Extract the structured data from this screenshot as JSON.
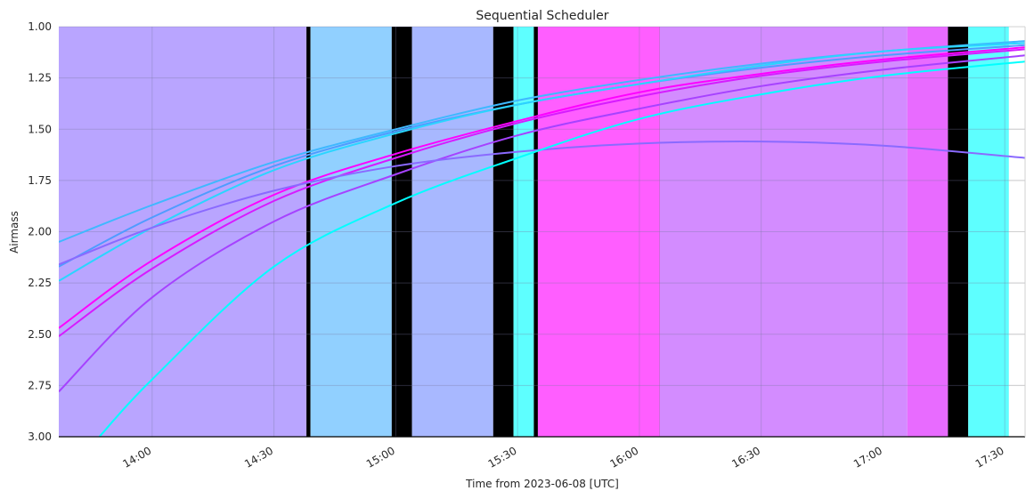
{
  "chart_data": {
    "type": "line",
    "title": "Sequential Scheduler",
    "xlabel": "Time from 2023-06-08 [UTC]",
    "ylabel": "Airmass",
    "y_inverted": true,
    "ylim": [
      3.0,
      1.0
    ],
    "xlim": [
      "13:37",
      "17:35"
    ],
    "grid": true,
    "legend": "none",
    "x_ticks": [
      "14:00",
      "14:30",
      "15:00",
      "15:30",
      "16:00",
      "16:30",
      "17:00",
      "17:30"
    ],
    "y_ticks": [
      "1.00",
      "1.25",
      "1.50",
      "1.75",
      "2.00",
      "2.25",
      "2.50",
      "2.75",
      "3.00"
    ],
    "blocks": [
      {
        "start": "13:37",
        "end": "14:38",
        "color": "#b9a5ff"
      },
      {
        "start": "14:38",
        "end": "14:39",
        "color": "#000000"
      },
      {
        "start": "14:39",
        "end": "14:59",
        "color": "#91d0ff"
      },
      {
        "start": "14:59",
        "end": "15:04",
        "color": "#000000"
      },
      {
        "start": "15:04",
        "end": "15:24",
        "color": "#a8b8ff"
      },
      {
        "start": "15:24",
        "end": "15:29",
        "color": "#000000"
      },
      {
        "start": "15:29",
        "end": "15:34",
        "color": "#5effff"
      },
      {
        "start": "15:34",
        "end": "15:35",
        "color": "#000000"
      },
      {
        "start": "15:35",
        "end": "16:05",
        "color": "#ff5eff"
      },
      {
        "start": "16:05",
        "end": "16:05",
        "color": "#000000"
      },
      {
        "start": "16:05",
        "end": "17:06",
        "color": "#d38cff"
      },
      {
        "start": "17:06",
        "end": "17:16",
        "color": "#e86bff"
      },
      {
        "start": "17:16",
        "end": "17:21",
        "color": "#000000"
      },
      {
        "start": "17:21",
        "end": "17:31",
        "color": "#5effff"
      }
    ],
    "series": [
      {
        "color": "#3fb8ff",
        "x": [
          "13:37",
          "14:00",
          "14:30",
          "15:00",
          "15:30",
          "16:00",
          "16:30",
          "17:00",
          "17:35"
        ],
        "values": [
          2.05,
          1.87,
          1.66,
          1.5,
          1.36,
          1.26,
          1.18,
          1.12,
          1.07
        ]
      },
      {
        "color": "#4f9cff",
        "x": [
          "13:37",
          "14:00",
          "14:30",
          "15:00",
          "15:30",
          "16:00",
          "16:30",
          "17:00",
          "17:35"
        ],
        "values": [
          2.17,
          1.93,
          1.68,
          1.51,
          1.38,
          1.28,
          1.2,
          1.14,
          1.09
        ]
      },
      {
        "color": "#2ad5ff",
        "x": [
          "13:37",
          "14:00",
          "14:30",
          "15:00",
          "15:30",
          "16:00",
          "16:30",
          "17:00",
          "17:35"
        ],
        "values": [
          2.24,
          1.98,
          1.7,
          1.52,
          1.38,
          1.28,
          1.19,
          1.12,
          1.08
        ]
      },
      {
        "color": "#ff00ff",
        "x": [
          "13:37",
          "14:00",
          "14:30",
          "15:00",
          "15:30",
          "16:00",
          "16:30",
          "17:00",
          "17:35"
        ],
        "values": [
          2.47,
          2.14,
          1.82,
          1.62,
          1.46,
          1.32,
          1.23,
          1.16,
          1.1
        ]
      },
      {
        "color": "#d61bff",
        "x": [
          "13:37",
          "14:00",
          "14:30",
          "15:00",
          "15:30",
          "16:00",
          "16:30",
          "17:00",
          "17:35"
        ],
        "values": [
          2.51,
          2.18,
          1.85,
          1.64,
          1.47,
          1.34,
          1.24,
          1.17,
          1.11
        ]
      },
      {
        "color": "#a642ff",
        "x": [
          "13:37",
          "14:00",
          "14:30",
          "15:00",
          "15:30",
          "16:00",
          "16:30",
          "17:00",
          "17:35"
        ],
        "values": [
          2.78,
          2.32,
          1.95,
          1.72,
          1.53,
          1.4,
          1.29,
          1.21,
          1.14
        ]
      },
      {
        "color": "#8a6aff",
        "x": [
          "13:37",
          "14:00",
          "14:30",
          "15:00",
          "15:30",
          "16:00",
          "16:30",
          "17:00",
          "17:35"
        ],
        "values": [
          2.16,
          1.98,
          1.8,
          1.68,
          1.61,
          1.57,
          1.56,
          1.58,
          1.64
        ]
      },
      {
        "color": "#00ffff",
        "x": [
          "13:47",
          "14:00",
          "14:30",
          "15:00",
          "15:30",
          "16:00",
          "16:30",
          "17:00",
          "17:35"
        ],
        "values": [
          3.0,
          2.72,
          2.17,
          1.86,
          1.64,
          1.45,
          1.33,
          1.24,
          1.17
        ]
      }
    ]
  }
}
